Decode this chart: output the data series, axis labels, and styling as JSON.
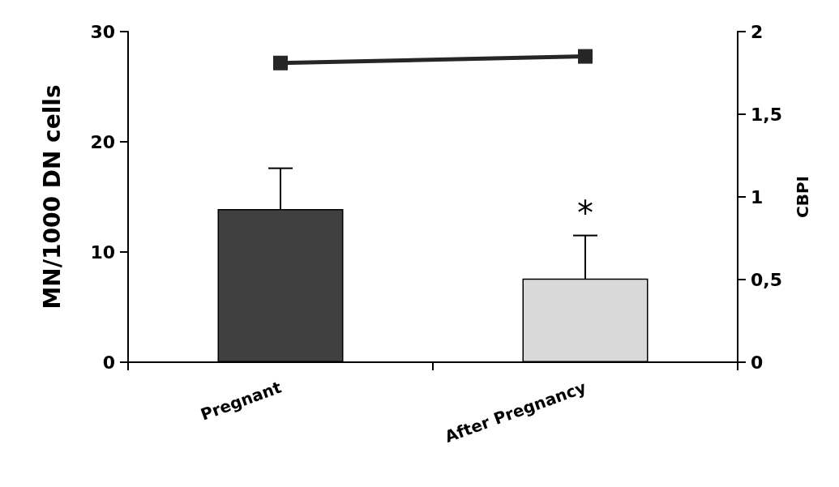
{
  "chart_data": {
    "type": "bar",
    "categories": [
      "Pregnant",
      "After Pregnancy"
    ],
    "ylabel": "MN/1000 DN cells",
    "y2label": "CBPI",
    "ylim": [
      0,
      30
    ],
    "yticks": [
      0,
      10,
      20,
      30
    ],
    "y2lim": [
      0,
      2
    ],
    "y2ticks": [
      0,
      {
        "value": 0.5,
        "label": "0,5"
      },
      1,
      {
        "value": 1.5,
        "label": "1,5"
      },
      2
    ],
    "series": [
      {
        "values": [
          13.9,
          7.6
        ],
        "colors": [
          "#404040",
          "#d9d9d9"
        ],
        "errors": [
          3.7,
          3.9
        ]
      },
      {
        "type": "line",
        "axis": "y2",
        "color": "#262626",
        "values": [
          1.81,
          1.85
        ]
      }
    ],
    "annotations": [
      "*"
    ],
    "marker": "square",
    "line_style": "solid",
    "grid": false
  }
}
